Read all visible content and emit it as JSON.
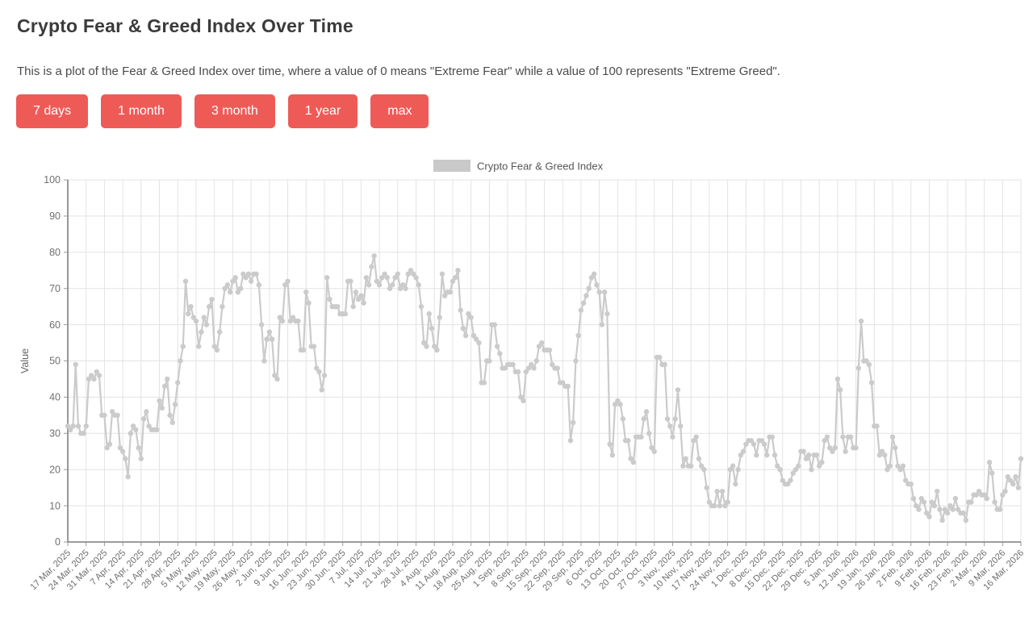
{
  "page": {
    "title": "Crypto Fear & Greed Index Over Time",
    "description": "This is a plot of the Fear & Greed Index over time, where a value of 0 means \"Extreme Fear\" while a value of 100 represents \"Extreme Greed\"."
  },
  "buttons": [
    {
      "label": "7 days"
    },
    {
      "label": "1 month"
    },
    {
      "label": "3 month"
    },
    {
      "label": "1 year"
    },
    {
      "label": "max"
    }
  ],
  "colors": {
    "accent": "#ee5b57",
    "series": "#cbcbcb",
    "legend_swatch": "#c9c9c9",
    "grid": "#e3e3e3",
    "axis": "#616161",
    "tick_text": "#707070",
    "title_text": "#3b3b3b",
    "body_text": "#4b4b4b"
  },
  "chart_data": {
    "type": "line",
    "title": "",
    "legend": [
      {
        "label": "Crypto Fear & Greed Index",
        "color": "#c9c9c9"
      }
    ],
    "xlabel": "",
    "ylabel": "Value",
    "ylim": [
      0,
      100
    ],
    "grid": true,
    "legend_position": "top-center",
    "marker": "circle",
    "frequency": "daily",
    "x_start": "17 Mar, 2025",
    "x_end": "16 Mar, 2026",
    "yticks": [
      0,
      10,
      20,
      30,
      40,
      50,
      60,
      70,
      80,
      90,
      100
    ],
    "xticks": [
      "17 Mar, 2025",
      "24 Mar, 2025",
      "31 Mar, 2025",
      "7 Apr, 2025",
      "14 Apr, 2025",
      "21 Apr, 2025",
      "28 Apr, 2025",
      "5 May, 2025",
      "12 May, 2025",
      "19 May, 2025",
      "26 May, 2025",
      "2 Jun, 2025",
      "9 Jun, 2025",
      "16 Jun, 2025",
      "23 Jun, 2025",
      "30 Jun, 2025",
      "7 Jul, 2025",
      "14 Jul, 2025",
      "21 Jul, 2025",
      "28 Jul, 2025",
      "4 Aug, 2025",
      "11 Aug, 2025",
      "18 Aug, 2025",
      "25 Aug, 2025",
      "1 Sep, 2025",
      "8 Sep, 2025",
      "15 Sep, 2025",
      "22 Sep, 2025",
      "29 Sep, 2025",
      "6 Oct, 2025",
      "13 Oct, 2025",
      "20 Oct, 2025",
      "27 Oct, 2025",
      "3 Nov, 2025",
      "10 Nov, 2025",
      "17 Nov, 2025",
      "24 Nov, 2025",
      "1 Dec, 2025",
      "8 Dec, 2025",
      "15 Dec, 2025",
      "22 Dec, 2025",
      "29 Dec, 2025",
      "5 Jan, 2026",
      "12 Jan, 2026",
      "19 Jan, 2026",
      "26 Jan, 2026",
      "2 Feb, 2026",
      "9 Feb, 2026",
      "16 Feb, 2026",
      "23 Feb, 2026",
      "2 Mar, 2026",
      "9 Mar, 2026",
      "16 Mar, 2026"
    ],
    "values": [
      32,
      31,
      32,
      49,
      32,
      30,
      30,
      32,
      45,
      46,
      45,
      47,
      46,
      35,
      35,
      26,
      27,
      36,
      35,
      35,
      26,
      25,
      23,
      18,
      30,
      32,
      31,
      26,
      23,
      34,
      36,
      32,
      31,
      31,
      31,
      39,
      37,
      43,
      45,
      35,
      33,
      38,
      44,
      50,
      54,
      72,
      63,
      65,
      62,
      61,
      54,
      58,
      62,
      60,
      65,
      67,
      54,
      53,
      58,
      65,
      70,
      71,
      69,
      72,
      73,
      69,
      70,
      74,
      73,
      74,
      72,
      74,
      74,
      71,
      60,
      50,
      56,
      58,
      56,
      46,
      45,
      62,
      61,
      71,
      72,
      61,
      62,
      61,
      61,
      53,
      53,
      69,
      66,
      54,
      54,
      48,
      47,
      42,
      46,
      73,
      67,
      65,
      65,
      65,
      63,
      63,
      63,
      72,
      72,
      65,
      69,
      67,
      68,
      66,
      73,
      71,
      76,
      79,
      72,
      71,
      73,
      74,
      73,
      70,
      71,
      73,
      74,
      70,
      71,
      70,
      74,
      75,
      74,
      73,
      71,
      65,
      55,
      54,
      63,
      59,
      54,
      53,
      62,
      74,
      68,
      69,
      69,
      72,
      73,
      75,
      64,
      59,
      57,
      63,
      62,
      57,
      56,
      55,
      44,
      44,
      50,
      50,
      60,
      60,
      54,
      52,
      48,
      48,
      49,
      49,
      49,
      47,
      47,
      40,
      39,
      47,
      48,
      49,
      48,
      50,
      54,
      55,
      53,
      53,
      53,
      49,
      48,
      48,
      44,
      44,
      43,
      43,
      28,
      33,
      50,
      57,
      64,
      66,
      68,
      70,
      73,
      74,
      71,
      69,
      60,
      69,
      63,
      27,
      24,
      38,
      39,
      38,
      34,
      28,
      28,
      23,
      22,
      29,
      29,
      29,
      34,
      36,
      30,
      26,
      25,
      51,
      51,
      49,
      49,
      34,
      32,
      29,
      34,
      42,
      32,
      21,
      23,
      21,
      21,
      28,
      29,
      23,
      21,
      20,
      15,
      11,
      10,
      10,
      14,
      10,
      14,
      10,
      11,
      20,
      21,
      16,
      20,
      24,
      25,
      27,
      28,
      28,
      27,
      24,
      28,
      28,
      27,
      24,
      29,
      29,
      24,
      21,
      20,
      17,
      16,
      16,
      17,
      19,
      20,
      21,
      25,
      25,
      23,
      24,
      20,
      24,
      24,
      21,
      22,
      28,
      29,
      26,
      25,
      26,
      45,
      42,
      29,
      25,
      29,
      29,
      26,
      26,
      48,
      61,
      50,
      50,
      49,
      44,
      32,
      32,
      24,
      25,
      24,
      20,
      21,
      29,
      26,
      21,
      20,
      21,
      17,
      16,
      16,
      12,
      10,
      9,
      12,
      11,
      8,
      7,
      11,
      10,
      14,
      9,
      6,
      9,
      8,
      10,
      9,
      12,
      9,
      8,
      8,
      6,
      11,
      11,
      13,
      13,
      14,
      13,
      13,
      12,
      22,
      19,
      11,
      9,
      9,
      13,
      14,
      18,
      17,
      16,
      18,
      15,
      23
    ]
  }
}
